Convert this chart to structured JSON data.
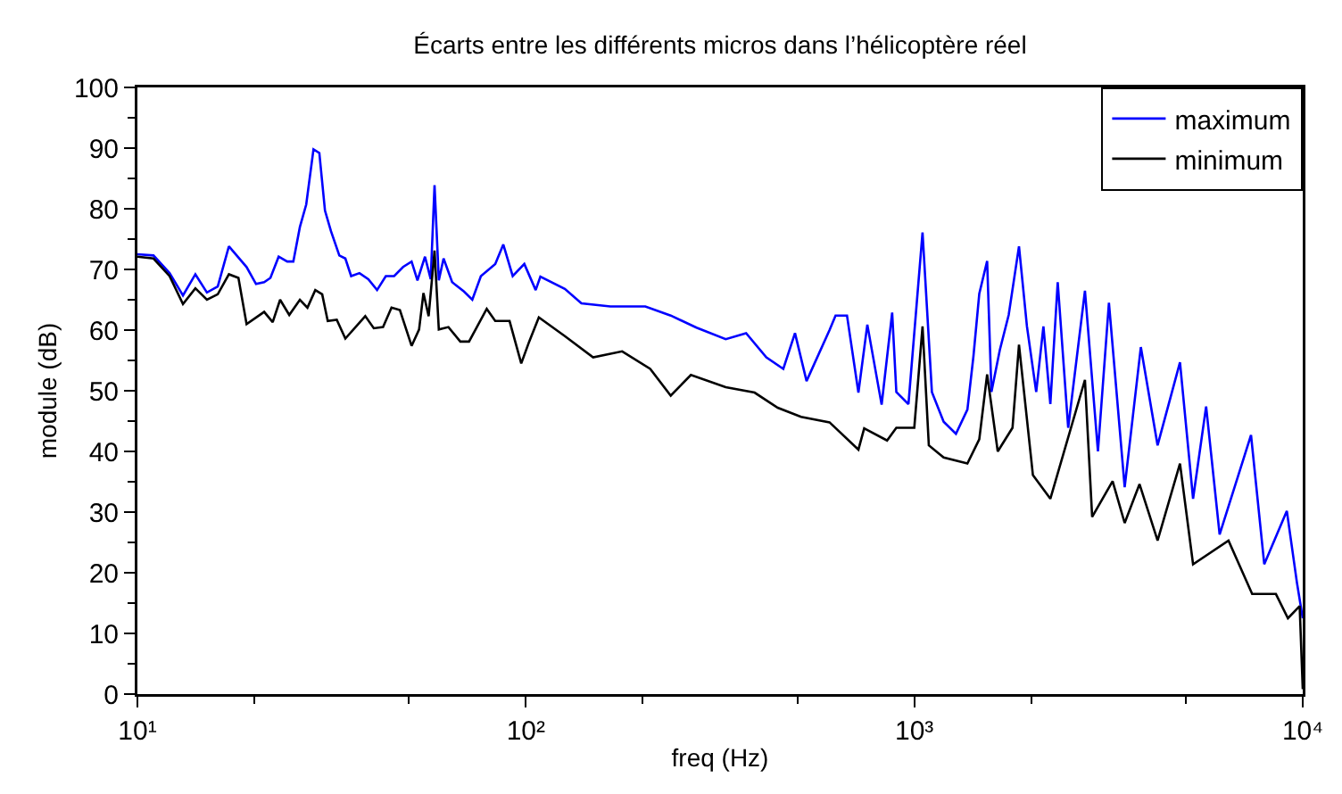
{
  "chart_data": {
    "type": "line",
    "title": "Écarts entre les différents micros dans l’hélicoptère réel",
    "xlabel": "freq (Hz)",
    "ylabel": "module (dB)",
    "log": "x",
    "grid": false,
    "legend": "top right",
    "marker": "none",
    "line_style": "solid",
    "xlim": [
      10,
      10000
    ],
    "xticks": [
      {
        "value": 10,
        "label": "10¹"
      },
      {
        "value": 100,
        "label": "10²"
      },
      {
        "value": 1000,
        "label": "10³"
      },
      {
        "value": 10000,
        "label": "10⁴"
      }
    ],
    "ylim": [
      0,
      100
    ],
    "yticks": [
      0,
      10,
      20,
      30,
      40,
      50,
      60,
      70,
      80,
      90,
      100
    ],
    "series": [
      {
        "name": "maximum",
        "color": "#0000ff",
        "x": [
          10,
          11.0,
          12.1,
          13.1,
          14.1,
          15.1,
          16.1,
          17.2,
          19.1,
          20.2,
          21.2,
          22.0,
          23.1,
          24.3,
          25.2,
          26.2,
          27.2,
          28.4,
          29.4,
          30.4,
          31.5,
          33.1,
          34.3,
          35.5,
          37.3,
          39.3,
          41.4,
          43.6,
          45.8,
          48.3,
          50.8,
          52.6,
          55.0,
          56.9,
          58.2,
          59.7,
          61.4,
          64.6,
          69.2,
          72.8,
          76.6,
          83.4,
          87.5,
          92.5,
          99.1,
          106,
          109,
          126,
          139,
          165,
          203,
          236,
          275,
          327,
          369,
          416,
          460,
          493,
          528,
          605,
          627,
          671,
          718,
          757,
          824,
          877,
          899,
          966,
          1050,
          1110,
          1190,
          1280,
          1370,
          1420,
          1470,
          1540,
          1580,
          1660,
          1750,
          1860,
          1950,
          2060,
          2150,
          2240,
          2340,
          2490,
          2750,
          2970,
          3170,
          3480,
          3830,
          4230,
          4830,
          5220,
          5640,
          6110,
          7360,
          7960,
          9100,
          9660,
          10000
        ],
        "values": [
          72.5,
          72.3,
          69.4,
          65.7,
          69.2,
          66.2,
          67.2,
          73.8,
          70.4,
          67.6,
          67.9,
          68.6,
          72.1,
          71.3,
          71.3,
          77.0,
          80.7,
          89.8,
          89.2,
          79.7,
          76.3,
          72.3,
          71.8,
          68.9,
          69.4,
          68.4,
          66.6,
          68.9,
          68.9,
          70.4,
          71.3,
          68.2,
          72.1,
          68.4,
          83.9,
          68.2,
          71.8,
          67.9,
          66.4,
          65.0,
          68.9,
          70.9,
          74.1,
          68.9,
          70.9,
          66.6,
          68.8,
          66.8,
          64.4,
          63.9,
          63.9,
          62.4,
          60.4,
          58.5,
          59.5,
          55.5,
          53.6,
          59.5,
          51.6,
          60.0,
          62.4,
          62.4,
          49.7,
          60.9,
          47.7,
          62.9,
          49.8,
          47.8,
          76.1,
          49.8,
          44.9,
          42.9,
          46.9,
          55.7,
          66.0,
          71.4,
          49.8,
          56.7,
          62.5,
          73.8,
          60.6,
          49.8,
          60.6,
          47.8,
          67.9,
          43.9,
          66.5,
          40.0,
          64.5,
          34.1,
          57.2,
          41.0,
          54.7,
          32.2,
          47.4,
          26.3,
          42.7,
          21.4,
          30.2,
          18.4,
          12.5
        ]
      },
      {
        "name": "minimum",
        "color": "#000000",
        "x": [
          10,
          11.0,
          12.1,
          13.1,
          14.1,
          15.1,
          16.1,
          17.2,
          18.2,
          19.1,
          21.2,
          22.3,
          23.3,
          24.6,
          26.2,
          27.4,
          28.7,
          29.9,
          30.9,
          32.6,
          34.3,
          36.7,
          38.6,
          40.6,
          42.9,
          45.1,
          47.4,
          50.8,
          53.1,
          54.5,
          56.2,
          58.2,
          59.7,
          63.2,
          67.8,
          71.4,
          74.8,
          79.3,
          83.4,
          90.8,
          97.3,
          102,
          108,
          126,
          149,
          177,
          209,
          236,
          266,
          327,
          388,
          445,
          511,
          605,
          718,
          743,
          851,
          899,
          1000,
          1050,
          1090,
          1190,
          1370,
          1470,
          1540,
          1640,
          1790,
          1860,
          2020,
          2240,
          2750,
          2870,
          3240,
          3480,
          3800,
          4230,
          4830,
          5220,
          6440,
          7410,
          8530,
          9160,
          9820,
          10000
        ],
        "values": [
          72.1,
          71.8,
          68.9,
          64.3,
          66.9,
          65.0,
          65.9,
          69.2,
          68.6,
          61.0,
          63.0,
          61.3,
          65.0,
          62.5,
          65.0,
          63.7,
          66.6,
          65.9,
          61.5,
          61.7,
          58.6,
          60.7,
          62.3,
          60.3,
          60.5,
          63.7,
          63.3,
          57.4,
          60.1,
          66.1,
          62.3,
          73.1,
          60.1,
          60.5,
          58.1,
          58.1,
          60.5,
          63.5,
          61.5,
          61.5,
          54.5,
          58.1,
          62.1,
          59.0,
          55.5,
          56.5,
          53.6,
          49.2,
          52.6,
          50.6,
          49.7,
          47.2,
          45.7,
          44.8,
          40.3,
          43.8,
          41.8,
          43.9,
          43.9,
          60.6,
          41.0,
          39.0,
          38.0,
          42.0,
          52.7,
          40.0,
          43.9,
          57.6,
          36.1,
          32.2,
          51.8,
          29.2,
          35.1,
          28.2,
          34.6,
          25.3,
          38.0,
          21.4,
          25.3,
          16.5,
          16.5,
          12.5,
          14.5,
          0.8
        ]
      }
    ]
  }
}
